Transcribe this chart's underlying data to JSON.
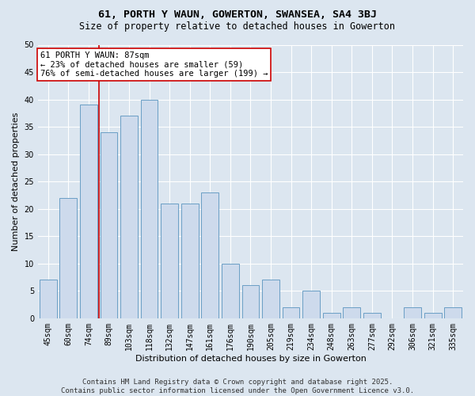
{
  "title1": "61, PORTH Y WAUN, GOWERTON, SWANSEA, SA4 3BJ",
  "title2": "Size of property relative to detached houses in Gowerton",
  "xlabel": "Distribution of detached houses by size in Gowerton",
  "ylabel": "Number of detached properties",
  "categories": [
    "45sqm",
    "60sqm",
    "74sqm",
    "89sqm",
    "103sqm",
    "118sqm",
    "132sqm",
    "147sqm",
    "161sqm",
    "176sqm",
    "190sqm",
    "205sqm",
    "219sqm",
    "234sqm",
    "248sqm",
    "263sqm",
    "277sqm",
    "292sqm",
    "306sqm",
    "321sqm",
    "335sqm"
  ],
  "values": [
    7,
    22,
    39,
    34,
    37,
    40,
    21,
    21,
    23,
    10,
    6,
    7,
    2,
    5,
    1,
    2,
    1,
    0,
    2,
    1,
    2
  ],
  "bar_color": "#cddaec",
  "bar_edge_color": "#6a9ec5",
  "annotation_title": "61 PORTH Y WAUN: 87sqm",
  "annotation_line1": "← 23% of detached houses are smaller (59)",
  "annotation_line2": "76% of semi-detached houses are larger (199) →",
  "annotation_box_color": "#ffffff",
  "annotation_box_edge": "#cc0000",
  "vline_color": "#cc0000",
  "vline_x": 2.5,
  "ylim": [
    0,
    50
  ],
  "yticks": [
    0,
    5,
    10,
    15,
    20,
    25,
    30,
    35,
    40,
    45,
    50
  ],
  "bg_color": "#dce6f0",
  "plot_bg_color": "#dce6f0",
  "grid_color": "#ffffff",
  "footer": "Contains HM Land Registry data © Crown copyright and database right 2025.\nContains public sector information licensed under the Open Government Licence v3.0.",
  "title_fontsize": 9.5,
  "subtitle_fontsize": 8.5,
  "axis_label_fontsize": 8,
  "tick_fontsize": 7,
  "annotation_fontsize": 7.5,
  "footer_fontsize": 6.5
}
